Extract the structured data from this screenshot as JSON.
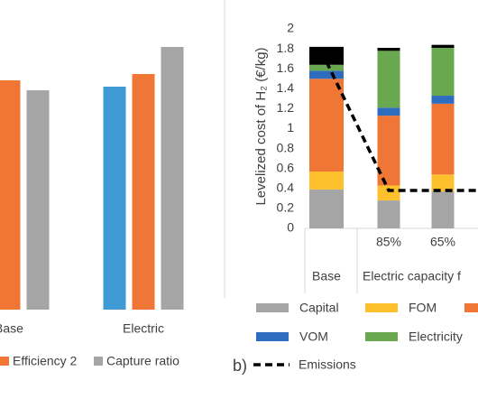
{
  "chart_data": [
    {
      "type": "bar",
      "categories": [
        "Base",
        "Electric"
      ],
      "series": [
        {
          "color": "#3f9ad6",
          "values": [
            null,
            247
          ]
        },
        {
          "name": "Efficiency 2",
          "color": "#f07635",
          "values": [
            254,
            261
          ]
        },
        {
          "name": "Capture ratio",
          "color": "#a5a5a5",
          "values": [
            243,
            291
          ]
        }
      ],
      "ylim": [
        0,
        300
      ]
    },
    {
      "type": "stacked_bar",
      "panel_label": "b)",
      "ylabel": "Levelized cost of H₂ (€/kg)",
      "categories": [
        "Base",
        "85%",
        "65%",
        null
      ],
      "group_labels": [
        "Electric capacity f"
      ],
      "series": [
        {
          "name": "Capital",
          "color": "#a5a5a5",
          "values": [
            0.39,
            0.28,
            0.37,
            null
          ]
        },
        {
          "name": "FOM",
          "color": "#ffc02e",
          "values": [
            0.18,
            0.15,
            0.17,
            null
          ]
        },
        {
          "color": "#f07635",
          "values": [
            0.93,
            0.7,
            0.71,
            null
          ]
        },
        {
          "name": "VOM",
          "color": "#2e6cc0",
          "values": [
            0.08,
            0.08,
            0.08,
            null
          ]
        },
        {
          "name": "Electricity",
          "color": "#6aa84f",
          "values": [
            0.06,
            0.57,
            0.48,
            null
          ]
        },
        {
          "color": "#000000",
          "values": [
            0.18,
            0.03,
            0.03,
            null
          ]
        }
      ],
      "line": {
        "name": "Emissions",
        "color": "#000000",
        "values": [
          1.67,
          0.38,
          0.38,
          0.38
        ]
      },
      "ylim": [
        0,
        2
      ],
      "yticks": [
        0,
        0.2,
        0.4,
        0.6,
        0.8,
        1,
        1.2,
        1.4,
        1.6,
        1.8,
        2
      ]
    }
  ]
}
